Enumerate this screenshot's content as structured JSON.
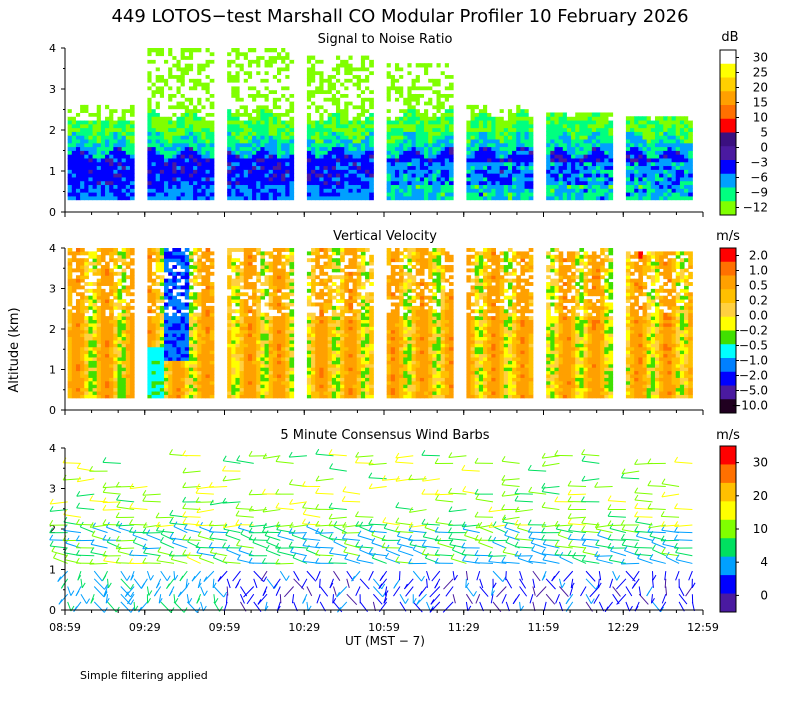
{
  "title": "449 LOTOS−test Marshall CO Modular Profiler 10 February 2026",
  "y_axis_label": "Altitude (km)",
  "x_axis_label": "UT  (MST − 7)",
  "footnote": "Simple filtering applied",
  "x_ticks": [
    "08:59",
    "09:29",
    "09:59",
    "10:29",
    "10:59",
    "11:29",
    "11:59",
    "12:29",
    "12:59"
  ],
  "y_ticks": [
    "0",
    "1",
    "2",
    "3",
    "4"
  ],
  "chart_data": [
    {
      "type": "heatmap",
      "title": "Signal to Noise Ratio",
      "units": "dB",
      "ylim": [
        0,
        4
      ],
      "data_blocks": [
        {
          "start": "09:00",
          "end": "09:25",
          "top_km": 2.6
        },
        {
          "start": "09:30",
          "end": "09:55",
          "top_km": 4.0
        },
        {
          "start": "10:00",
          "end": "10:25",
          "top_km": 4.0
        },
        {
          "start": "10:30",
          "end": "10:55",
          "top_km": 3.8
        },
        {
          "start": "11:00",
          "end": "11:25",
          "top_km": 3.6
        },
        {
          "start": "11:30",
          "end": "11:55",
          "top_km": 2.6
        },
        {
          "start": "12:00",
          "end": "12:25",
          "top_km": 2.4
        },
        {
          "start": "12:30",
          "end": "12:55",
          "top_km": 2.3
        }
      ],
      "colorbar": {
        "labels": [
          "30",
          "25",
          "20",
          "15",
          "10",
          "5",
          "0",
          "−3",
          "−6",
          "−9",
          "−12"
        ],
        "colors": [
          "#ffffff",
          "#ffff00",
          "#ffd000",
          "#ffa000",
          "#ff7000",
          "#ff0000",
          "#3a1080",
          "#4a1aa0",
          "#0000ff",
          "#00a0ff",
          "#00ff80",
          "#80ff00"
        ]
      }
    },
    {
      "type": "heatmap",
      "title": "Vertical Velocity",
      "units": "m/s",
      "ylim": [
        0,
        4
      ],
      "data_blocks": [
        {
          "start": "09:00",
          "end": "09:25",
          "top_km": 4.0
        },
        {
          "start": "09:30",
          "end": "09:55",
          "top_km": 4.0
        },
        {
          "start": "10:00",
          "end": "10:25",
          "top_km": 4.0
        },
        {
          "start": "10:30",
          "end": "10:55",
          "top_km": 4.0
        },
        {
          "start": "11:00",
          "end": "11:25",
          "top_km": 4.0
        },
        {
          "start": "11:30",
          "end": "11:55",
          "top_km": 4.0
        },
        {
          "start": "12:00",
          "end": "12:25",
          "top_km": 4.0
        },
        {
          "start": "12:30",
          "end": "12:55",
          "top_km": 3.9
        }
      ],
      "colorbar": {
        "labels": [
          "2.0",
          "1.0",
          "0.5",
          "0.2",
          "0.0",
          "−0.2",
          "−0.5",
          "−1.0",
          "−2.0",
          "−5.0",
          "−10.0"
        ],
        "colors": [
          "#ff0000",
          "#ff7000",
          "#ffa000",
          "#ffc000",
          "#ffd040",
          "#ffff00",
          "#40e000",
          "#00ffff",
          "#0080ff",
          "#0000ff",
          "#4a1aa0",
          "#200020"
        ]
      }
    },
    {
      "type": "barbs",
      "title": "5 Minute Consensus Wind Barbs",
      "units": "m/s",
      "ylim": [
        0,
        4
      ],
      "x": [
        "09:00",
        "09:05",
        "09:10",
        "09:15",
        "09:20",
        "09:25",
        "09:30",
        "09:35",
        "09:40",
        "09:45",
        "09:50",
        "09:55",
        "10:00",
        "10:05",
        "10:10",
        "10:15",
        "10:20",
        "10:25",
        "10:30",
        "10:35",
        "10:40",
        "10:45",
        "10:50",
        "10:55",
        "11:00",
        "11:05",
        "11:10",
        "11:15",
        "11:20",
        "11:25",
        "11:30",
        "11:35",
        "11:40",
        "11:45",
        "11:50",
        "11:55",
        "12:00",
        "12:05",
        "12:10",
        "12:15",
        "12:20",
        "12:25",
        "12:30",
        "12:35",
        "12:40",
        "12:45",
        "12:50",
        "12:55"
      ],
      "colorbar": {
        "labels": [
          "30",
          "20",
          "10",
          "4",
          "0"
        ],
        "colors": [
          "#ff0000",
          "#ff7000",
          "#ffc000",
          "#ffff00",
          "#80ff00",
          "#00e060",
          "#00a0ff",
          "#0000ff",
          "#4a1aa0"
        ]
      }
    }
  ]
}
